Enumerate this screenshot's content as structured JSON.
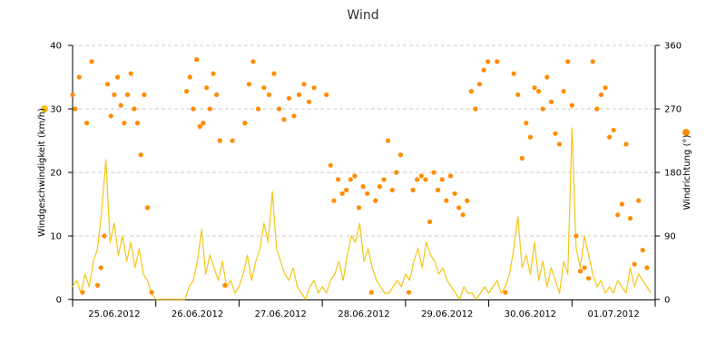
{
  "chart_data": {
    "type": "line",
    "title": "Wind",
    "x_categories": [
      "25.06.2012",
      "26.06.2012",
      "27.06.2012",
      "28.06.2012",
      "29.06.2012",
      "30.06.2012",
      "01.07.2012"
    ],
    "left_axis": {
      "label": "Windgeschwindigkeit (km/h)",
      "ylim": [
        0,
        40
      ],
      "ticks": [
        "0",
        "10",
        "20",
        "30",
        "40"
      ],
      "marker_color": "#f5c518"
    },
    "right_axis": {
      "label": "Windrichtung (°)",
      "ylim": [
        0,
        360
      ],
      "ticks": [
        "0",
        "90",
        "180",
        "270",
        "360"
      ],
      "marker_color": "#ff8c00"
    },
    "grid": true,
    "series": [
      {
        "type": "line",
        "axis": "left",
        "color": "#f5c518",
        "x": [
          0.0,
          0.05,
          0.1,
          0.15,
          0.2,
          0.25,
          0.3,
          0.35,
          0.4,
          0.45,
          0.5,
          0.55,
          0.6,
          0.65,
          0.7,
          0.75,
          0.8,
          0.85,
          0.9,
          0.95,
          1.0,
          1.05,
          1.1,
          1.15,
          1.2,
          1.25,
          1.3,
          1.35,
          1.4,
          1.45,
          1.5,
          1.55,
          1.6,
          1.65,
          1.7,
          1.75,
          1.8,
          1.85,
          1.9,
          1.95,
          2.0,
          2.05,
          2.1,
          2.15,
          2.2,
          2.25,
          2.3,
          2.35,
          2.4,
          2.45,
          2.5,
          2.55,
          2.6,
          2.65,
          2.7,
          2.75,
          2.8,
          2.85,
          2.9,
          2.95,
          3.0,
          3.05,
          3.1,
          3.15,
          3.2,
          3.25,
          3.3,
          3.35,
          3.4,
          3.45,
          3.5,
          3.55,
          3.6,
          3.65,
          3.7,
          3.75,
          3.8,
          3.85,
          3.9,
          3.95,
          4.0,
          4.05,
          4.1,
          4.15,
          4.2,
          4.25,
          4.3,
          4.35,
          4.4,
          4.45,
          4.5,
          4.55,
          4.6,
          4.65,
          4.7,
          4.75,
          4.8,
          4.85,
          4.9,
          4.95,
          5.0,
          5.05,
          5.1,
          5.15,
          5.2,
          5.25,
          5.3,
          5.35,
          5.4,
          5.45,
          5.5,
          5.55,
          5.6,
          5.65,
          5.7,
          5.75,
          5.8,
          5.85,
          5.9,
          5.95,
          6.0,
          6.05,
          6.1,
          6.15,
          6.2,
          6.25,
          6.3,
          6.35,
          6.4,
          6.45,
          6.5,
          6.55,
          6.6,
          6.65,
          6.7,
          6.75,
          6.8,
          6.85,
          6.9,
          6.95
        ],
        "values": [
          2,
          3,
          1,
          4,
          2,
          6,
          8,
          14,
          22,
          9,
          12,
          7,
          10,
          6,
          9,
          5,
          8,
          4,
          3,
          1,
          0,
          0,
          0,
          0,
          0,
          0,
          0,
          0,
          2,
          3,
          6,
          11,
          4,
          7,
          5,
          3,
          6,
          2,
          3,
          1,
          2,
          4,
          7,
          3,
          6,
          8,
          12,
          9,
          17,
          8,
          6,
          4,
          3,
          5,
          2,
          1,
          0,
          2,
          3,
          1,
          2,
          1,
          3,
          4,
          6,
          3,
          7,
          10,
          9,
          12,
          6,
          8,
          5,
          3,
          2,
          1,
          1,
          2,
          3,
          2,
          4,
          3,
          6,
          8,
          5,
          9,
          7,
          6,
          4,
          5,
          3,
          2,
          1,
          0,
          2,
          1,
          1,
          0,
          1,
          2,
          1,
          2,
          3,
          1,
          2,
          4,
          8,
          13,
          5,
          7,
          4,
          9,
          3,
          6,
          2,
          5,
          3,
          1,
          6,
          4,
          27,
          8,
          5,
          10,
          7,
          4,
          2,
          3,
          1,
          2,
          1,
          3,
          2,
          1,
          5,
          2,
          4,
          3,
          2,
          1
        ]
      },
      {
        "type": "scatter",
        "axis": "right",
        "color": "#ff8c00",
        "x": [
          0.0,
          0.03,
          0.08,
          0.12,
          0.17,
          0.23,
          0.3,
          0.34,
          0.38,
          0.42,
          0.46,
          0.5,
          0.54,
          0.58,
          0.62,
          0.66,
          0.7,
          0.74,
          0.78,
          0.82,
          0.86,
          0.9,
          0.95,
          1.37,
          1.41,
          1.45,
          1.49,
          1.53,
          1.57,
          1.61,
          1.65,
          1.69,
          1.73,
          1.77,
          1.83,
          1.92,
          2.07,
          2.12,
          2.17,
          2.23,
          2.3,
          2.36,
          2.42,
          2.48,
          2.54,
          2.6,
          2.66,
          2.72,
          2.78,
          2.84,
          2.9,
          3.05,
          3.1,
          3.14,
          3.19,
          3.24,
          3.29,
          3.34,
          3.39,
          3.44,
          3.49,
          3.54,
          3.59,
          3.64,
          3.69,
          3.74,
          3.79,
          3.84,
          3.89,
          3.94,
          4.04,
          4.09,
          4.14,
          4.19,
          4.24,
          4.29,
          4.34,
          4.39,
          4.44,
          4.49,
          4.54,
          4.59,
          4.64,
          4.69,
          4.74,
          4.79,
          4.84,
          4.89,
          4.94,
          4.99,
          5.1,
          5.2,
          5.3,
          5.35,
          5.4,
          5.45,
          5.5,
          5.55,
          5.6,
          5.65,
          5.7,
          5.75,
          5.8,
          5.85,
          5.9,
          5.95,
          6.0,
          6.05,
          6.1,
          6.15,
          6.2,
          6.25,
          6.3,
          6.35,
          6.4,
          6.45,
          6.5,
          6.55,
          6.6,
          6.65,
          6.7,
          6.75,
          6.8,
          6.85,
          6.9
        ],
        "values": [
          290,
          270,
          315,
          10,
          250,
          337,
          20,
          45,
          90,
          305,
          260,
          290,
          315,
          275,
          250,
          290,
          320,
          270,
          250,
          205,
          290,
          130,
          10,
          295,
          315,
          270,
          340,
          245,
          250,
          300,
          270,
          320,
          290,
          225,
          20,
          225,
          250,
          305,
          337,
          270,
          300,
          290,
          320,
          270,
          255,
          285,
          260,
          290,
          305,
          280,
          300,
          290,
          190,
          140,
          170,
          150,
          155,
          170,
          175,
          130,
          160,
          150,
          10,
          140,
          160,
          170,
          225,
          155,
          180,
          205,
          10,
          155,
          170,
          175,
          170,
          110,
          180,
          155,
          170,
          140,
          175,
          150,
          130,
          120,
          140,
          295,
          270,
          305,
          325,
          337,
          337,
          10,
          320,
          290,
          200,
          250,
          230,
          300,
          295,
          270,
          315,
          280,
          235,
          220,
          295,
          337,
          275,
          90,
          40,
          45,
          30,
          337,
          270,
          290,
          300,
          230,
          240,
          120,
          135,
          220,
          115,
          50,
          140,
          70,
          45
        ]
      }
    ]
  }
}
